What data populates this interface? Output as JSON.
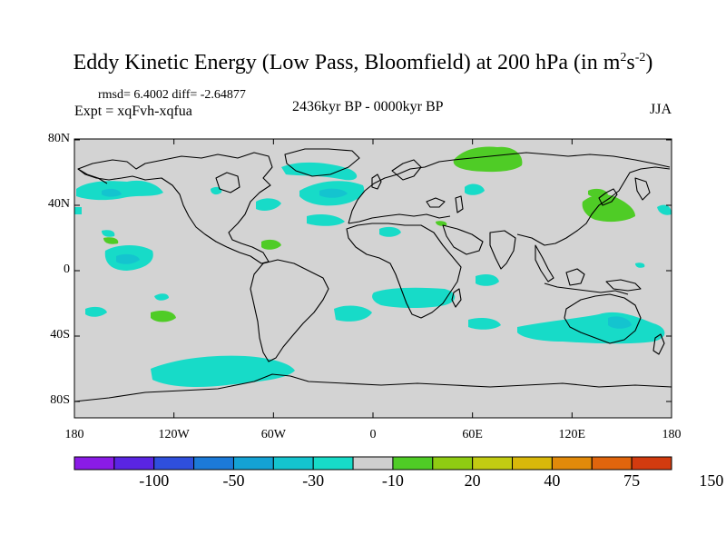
{
  "title": {
    "text": "Eddy Kinetic Energy (Low Pass, Bloomfield) at 200 hPa (in m",
    "sup1": "2",
    "mid": "s",
    "sup2": "-2",
    "end": ")"
  },
  "stats": "rmsd= 6.4002 diff= -2.64877",
  "expt": "Expt = xqFvh-xqfua",
  "period": "2436kyr BP - 0000kyr BP",
  "season": "JJA",
  "y_axis": [
    {
      "label": "80N",
      "lat": 80
    },
    {
      "label": "40N",
      "lat": 40
    },
    {
      "label": "0",
      "lat": 0
    },
    {
      "label": "40S",
      "lat": -40
    },
    {
      "label": "80S",
      "lat": -80
    }
  ],
  "x_axis": [
    {
      "label": "180",
      "lon": -180
    },
    {
      "label": "120W",
      "lon": -120
    },
    {
      "label": "60W",
      "lon": -60
    },
    {
      "label": "0",
      "lon": 0
    },
    {
      "label": "60E",
      "lon": 60
    },
    {
      "label": "120E",
      "lon": 120
    },
    {
      "label": "180",
      "lon": 180
    }
  ],
  "colorbar": {
    "colors": [
      "#8a1be6",
      "#5a25e3",
      "#2f4fdd",
      "#1c7ad8",
      "#14a2d4",
      "#14c4cf",
      "#17dbc8",
      "#cfcfcf",
      "#4fcc26",
      "#8fcc12",
      "#c2cc12",
      "#d9b80a",
      "#e28a0a",
      "#e0650d",
      "#d23b0f"
    ],
    "labels": [
      {
        "text": "-100",
        "boundary": 2
      },
      {
        "text": "-50",
        "boundary": 4
      },
      {
        "text": "-30",
        "boundary": 6
      },
      {
        "text": "-10",
        "boundary": 8
      },
      {
        "text": "20",
        "boundary": 10
      },
      {
        "text": "40",
        "boundary": 12
      },
      {
        "text": "75",
        "boundary": 14
      },
      {
        "text": "150",
        "boundary": 16
      }
    ]
  },
  "map_colors": {
    "ocean_bg": "#d3d3d3",
    "negative": "#17dbc8",
    "negative_strong": "#14c4cf",
    "positive": "#4fcc26",
    "coast": "#000000"
  }
}
